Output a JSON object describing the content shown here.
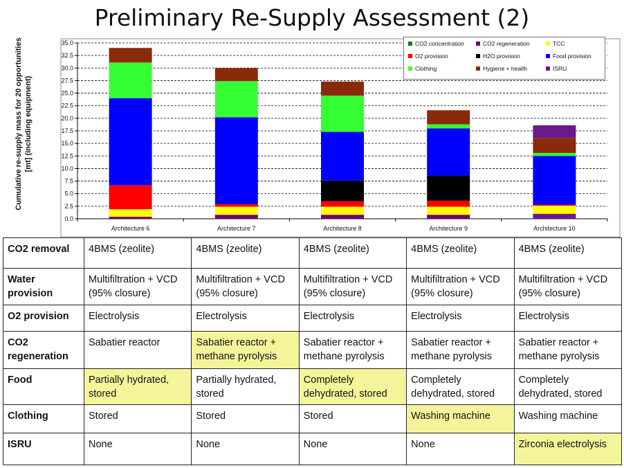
{
  "title": "Preliminary Re-Supply Assessment (2)",
  "chart_data": {
    "type": "bar",
    "stacked": true,
    "categories": [
      "Architecture 6",
      "Architecture 7",
      "Architecture 8",
      "Architecture 9",
      "Architecture 10"
    ],
    "ylabel": "Cumulative re-supply mass for 20 opportunities [mt] (including equipment)",
    "ylim": [
      0,
      35
    ],
    "yticks": [
      "0.0",
      "2.5",
      "5.0",
      "7.5",
      "10.0",
      "12.5",
      "15.0",
      "17.5",
      "20.0",
      "22.5",
      "25.0",
      "27.5",
      "30.0",
      "32.5",
      "35.0"
    ],
    "grid": true,
    "legend_position": "top-right",
    "series": [
      {
        "name": "ISRU",
        "color": "#6b1a8a",
        "values": [
          0,
          0,
          0,
          0,
          1.0
        ]
      },
      {
        "name": "CO2 regeneration",
        "color": "#700070",
        "values": [
          0.4,
          0.8,
          0.8,
          0.8,
          0.0
        ]
      },
      {
        "name": "TCC",
        "color": "#ffff00",
        "values": [
          1.5,
          1.6,
          1.6,
          1.6,
          1.6
        ]
      },
      {
        "name": "O2 provision",
        "color": "#ff0000",
        "values": [
          4.8,
          0.5,
          1.1,
          1.2,
          0.2
        ]
      },
      {
        "name": "H2O provision",
        "color": "#000000",
        "values": [
          0,
          0,
          4.1,
          5.0,
          0
        ]
      },
      {
        "name": "Food provision",
        "color": "#0000ff",
        "values": [
          17.3,
          17.3,
          9.7,
          9.4,
          9.7
        ]
      },
      {
        "name": "Clothing",
        "color": "#33ff33",
        "values": [
          7.1,
          7.2,
          7.2,
          0.8,
          0.6
        ]
      },
      {
        "name": "Hygiene + health",
        "color": "#8b2a0a",
        "values": [
          2.9,
          2.6,
          2.8,
          2.8,
          3.0
        ]
      },
      {
        "name": "ISRU",
        "color": "#6b1a8a",
        "values": [
          0,
          0,
          0,
          0,
          2.5
        ]
      }
    ]
  },
  "legend": [
    {
      "name": "CO2 concentration",
      "color": "#008000"
    },
    {
      "name": "CO2 regeneration",
      "color": "#700070"
    },
    {
      "name": "TCC",
      "color": "#ffff00"
    },
    {
      "name": "O2 provision",
      "color": "#ff0000"
    },
    {
      "name": "H2O provision",
      "color": "#000000"
    },
    {
      "name": "Food provision",
      "color": "#0000ff"
    },
    {
      "name": "Clothing",
      "color": "#33ff33"
    },
    {
      "name": "Hygiene + health",
      "color": "#8b2a0a"
    },
    {
      "name": "ISRU",
      "color": "#6b1a8a"
    }
  ],
  "table": {
    "highlight_color": "#f4f59b",
    "rows": [
      {
        "label": "CO2 removal",
        "cells": [
          {
            "text": "4BMS (zeolite)",
            "hl": false
          },
          {
            "text": "4BMS (zeolite)",
            "hl": false
          },
          {
            "text": "4BMS (zeolite)",
            "hl": false
          },
          {
            "text": "4BMS (zeolite)",
            "hl": false
          },
          {
            "text": "4BMS (zeolite)",
            "hl": false
          }
        ]
      },
      {
        "label": "Water provision",
        "cells": [
          {
            "text": "Multifiltration + VCD (95% closure)",
            "hl": false
          },
          {
            "text": "Multifiltration + VCD (95% closure)",
            "hl": false
          },
          {
            "text": "Multifiltration + VCD (95% closure)",
            "hl": false
          },
          {
            "text": "Multifiltration + VCD (95% closure)",
            "hl": false
          },
          {
            "text": "Multifiltration + VCD (95% closure)",
            "hl": false
          }
        ]
      },
      {
        "label": "O2 provision",
        "cells": [
          {
            "text": "Electrolysis",
            "hl": false
          },
          {
            "text": "Electrolysis",
            "hl": false
          },
          {
            "text": "Electrolysis",
            "hl": false
          },
          {
            "text": "Electrolysis",
            "hl": false
          },
          {
            "text": "Electrolysis",
            "hl": false
          }
        ]
      },
      {
        "label": "CO2 regeneration",
        "cells": [
          {
            "text": "Sabatier reactor",
            "hl": false
          },
          {
            "text": "Sabatier reactor + methane pyrolysis",
            "hl": true
          },
          {
            "text": "Sabatier reactor + methane pyrolysis",
            "hl": false
          },
          {
            "text": "Sabatier reactor + methane pyrolysis",
            "hl": false
          },
          {
            "text": "Sabatier reactor + methane pyrolysis",
            "hl": false
          }
        ]
      },
      {
        "label": "Food",
        "cells": [
          {
            "text": "Partially hydrated, stored",
            "hl": true
          },
          {
            "text": "Partially hydrated, stored",
            "hl": false
          },
          {
            "text": "Completely dehydrated, stored",
            "hl": true
          },
          {
            "text": "Completely dehydrated, stored",
            "hl": false
          },
          {
            "text": "Completely dehydrated, stored",
            "hl": false
          }
        ]
      },
      {
        "label": "Clothing",
        "cells": [
          {
            "text": "Stored",
            "hl": false
          },
          {
            "text": "Stored",
            "hl": false
          },
          {
            "text": "Stored",
            "hl": false
          },
          {
            "text": "Washing machine",
            "hl": true
          },
          {
            "text": "Washing machine",
            "hl": false
          }
        ]
      },
      {
        "label": "ISRU",
        "cells": [
          {
            "text": "None",
            "hl": false
          },
          {
            "text": "None",
            "hl": false
          },
          {
            "text": "None",
            "hl": false
          },
          {
            "text": "None",
            "hl": false
          },
          {
            "text": "Zirconia electrolysis",
            "hl": true
          }
        ]
      }
    ]
  }
}
